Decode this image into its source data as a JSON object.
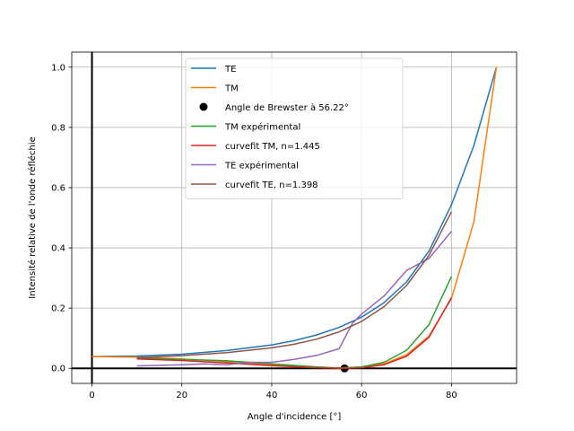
{
  "chart_data": {
    "type": "line",
    "title": "",
    "xlabel": "Angle d'incidence [°]",
    "ylabel": "Intensité relative de l'onde réfléchie",
    "xlim": [
      -4.5,
      94.5
    ],
    "ylim": [
      -0.05,
      1.05
    ],
    "x_ticks": [
      0,
      20,
      40,
      60,
      80
    ],
    "x_tick_labels": [
      "0",
      "20",
      "40",
      "60",
      "80"
    ],
    "y_ticks": [
      0.0,
      0.2,
      0.4,
      0.6,
      0.8,
      1.0
    ],
    "y_tick_labels": [
      "0.0",
      "0.2",
      "0.4",
      "0.6",
      "0.8",
      "1.0"
    ],
    "grid": true,
    "legend_position": "top-center",
    "reference_lines": [
      {
        "orientation": "horizontal",
        "value": 0
      },
      {
        "orientation": "vertical",
        "value": 0
      }
    ],
    "series": [
      {
        "name": "TE",
        "kind": "line",
        "color": "#1f77b4",
        "x": [
          0,
          10,
          20,
          30,
          40,
          45,
          50,
          55,
          60,
          65,
          70,
          75,
          80,
          85,
          90
        ],
        "y": [
          0.039,
          0.041,
          0.047,
          0.059,
          0.078,
          0.092,
          0.111,
          0.136,
          0.17,
          0.218,
          0.287,
          0.389,
          0.543,
          0.74,
          1.0
        ]
      },
      {
        "name": "TM",
        "kind": "line",
        "color": "#ff7f0e",
        "x": [
          0,
          10,
          20,
          30,
          40,
          45,
          50,
          56.22,
          60,
          65,
          70,
          75,
          80,
          85,
          90
        ],
        "y": [
          0.039,
          0.037,
          0.031,
          0.022,
          0.011,
          0.007,
          0.003,
          0.0,
          0.004,
          0.015,
          0.045,
          0.107,
          0.232,
          0.487,
          1.0
        ]
      },
      {
        "name": "Angle de Brewster à 56.22°",
        "kind": "scatter",
        "color": "#000000",
        "x": [
          56.22
        ],
        "y": [
          0.0
        ]
      },
      {
        "name": "TM expérimental",
        "kind": "line",
        "color": "#2ca02c",
        "x": [
          10,
          20,
          30,
          40,
          50,
          55,
          60,
          65,
          70,
          75,
          80
        ],
        "y": [
          0.035,
          0.03,
          0.025,
          0.015,
          0.005,
          0.001,
          0.005,
          0.02,
          0.06,
          0.145,
          0.305
        ]
      },
      {
        "name": "curvefit TM, n=1.445",
        "kind": "line",
        "color": "#d62728",
        "x": [
          10,
          20,
          30,
          40,
          50,
          56,
          60,
          65,
          70,
          75,
          80
        ],
        "y": [
          0.031,
          0.026,
          0.018,
          0.009,
          0.002,
          0.0,
          0.002,
          0.012,
          0.04,
          0.103,
          0.235
        ]
      },
      {
        "name": "TE expérimental",
        "kind": "line",
        "color": "#9467bd",
        "x": [
          10,
          15,
          20,
          25,
          30,
          35,
          40,
          45,
          50,
          55,
          58,
          60,
          65,
          70,
          75,
          80
        ],
        "y": [
          0.008,
          0.01,
          0.012,
          0.015,
          0.012,
          0.02,
          0.02,
          0.03,
          0.043,
          0.065,
          0.15,
          0.18,
          0.24,
          0.325,
          0.365,
          0.455
        ]
      },
      {
        "name": "curvefit TE, n=1.398",
        "kind": "line",
        "color": "#8c564b",
        "x": [
          10,
          20,
          30,
          40,
          45,
          50,
          55,
          60,
          65,
          70,
          75,
          80
        ],
        "y": [
          0.036,
          0.042,
          0.052,
          0.068,
          0.08,
          0.097,
          0.121,
          0.156,
          0.205,
          0.275,
          0.375,
          0.52
        ]
      }
    ]
  }
}
